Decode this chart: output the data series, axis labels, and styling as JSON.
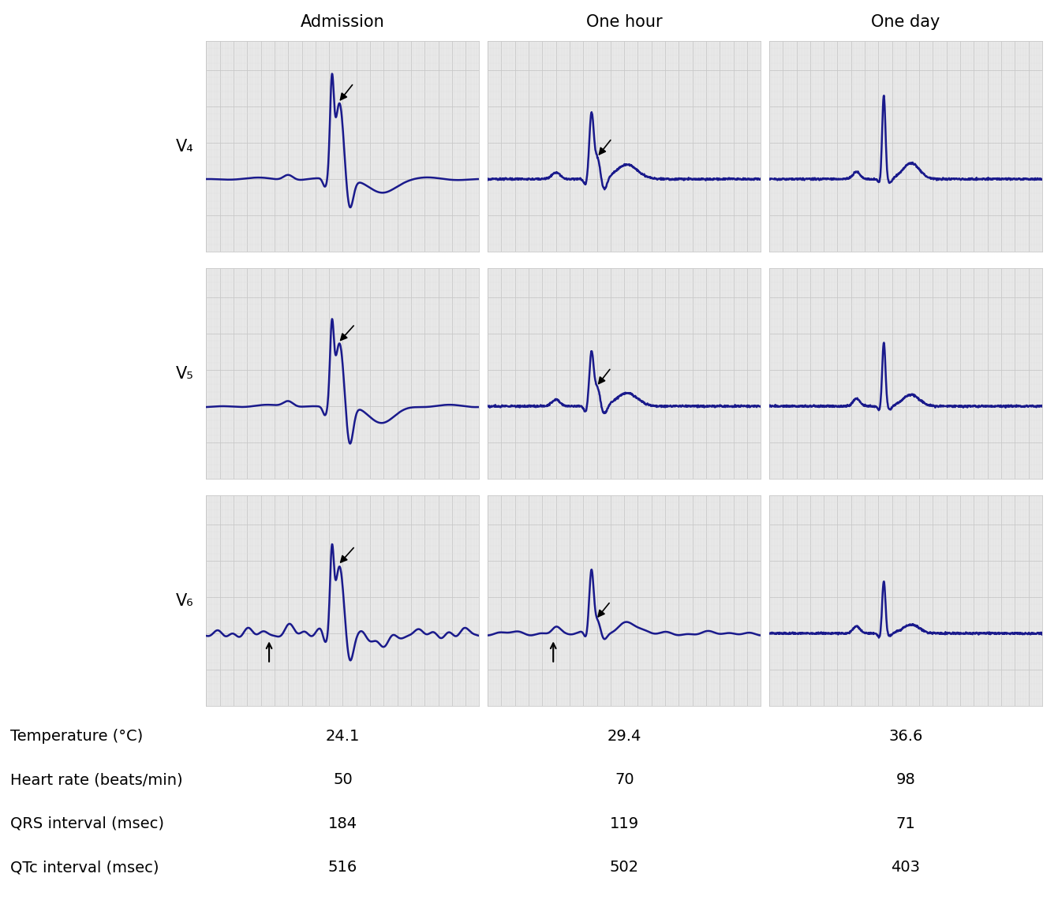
{
  "col_titles": [
    "Admission",
    "One hour",
    "One day"
  ],
  "row_labels": [
    "V₄",
    "V₅",
    "V₆"
  ],
  "ecg_color": "#1a1a8c",
  "grid_major_color": "#c8c8c8",
  "grid_minor_color": "#e0e0e0",
  "bg_color": "#e8e8e8",
  "table_labels": [
    "Temperature (°C)",
    "Heart rate (beats/min)",
    "QRS interval (msec)",
    "QTc interval (msec)"
  ],
  "table_values": [
    [
      "24.1",
      "29.4",
      "36.6"
    ],
    [
      "50",
      "70",
      "98"
    ],
    [
      "184",
      "119",
      "71"
    ],
    [
      "516",
      "502",
      "403"
    ]
  ],
  "figsize": [
    13.41,
    11.55
  ],
  "dpi": 100
}
